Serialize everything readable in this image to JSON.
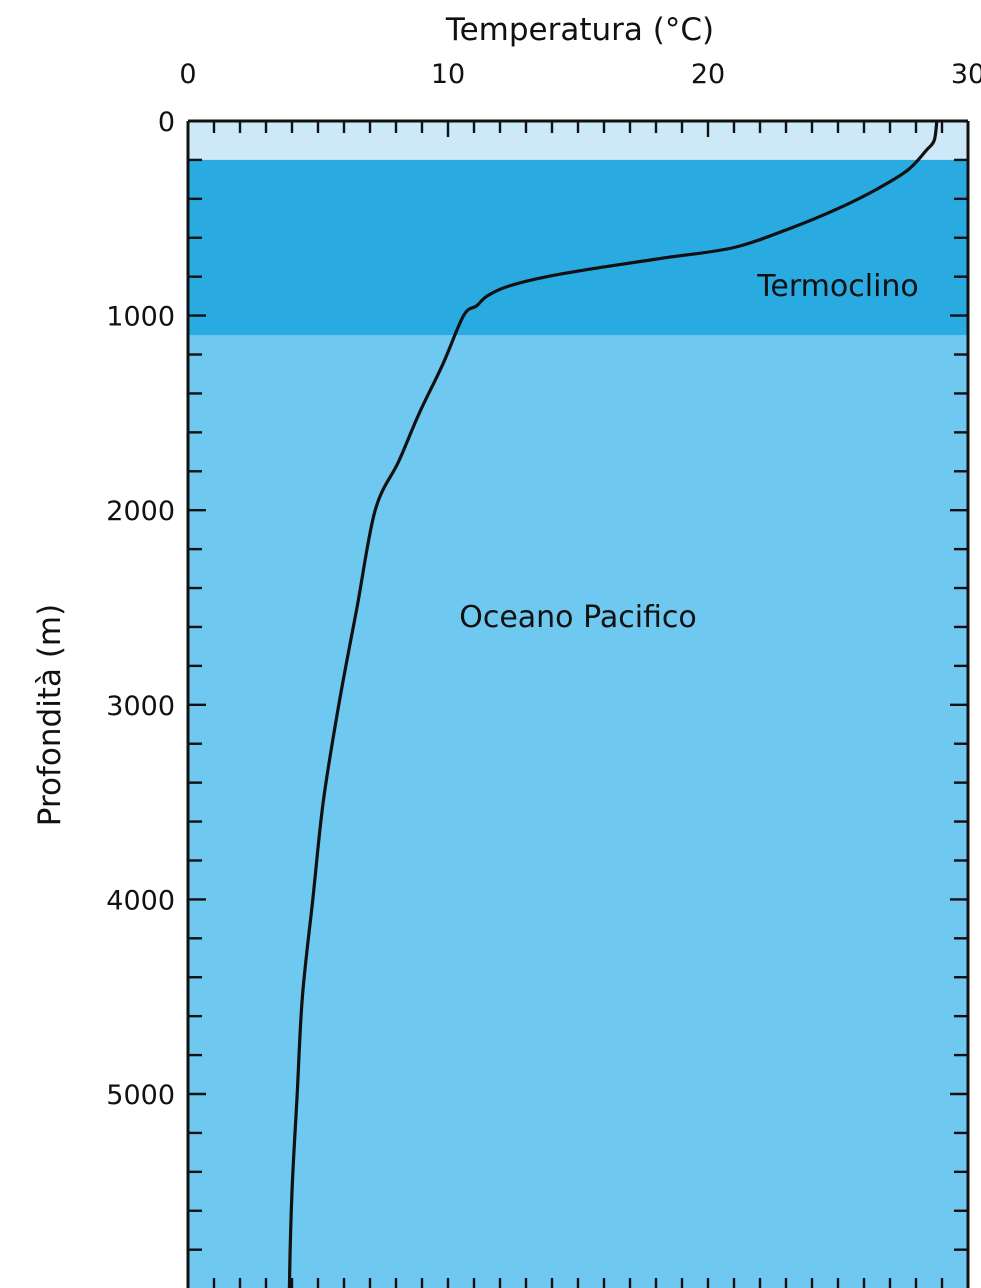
{
  "chart_data": {
    "type": "line",
    "title": "",
    "xlabel": "Temperatura (°C)",
    "ylabel": "Profondità (m)",
    "x_axis_position": "top",
    "y_axis_inverted": true,
    "xlim": [
      0,
      30
    ],
    "ylim": [
      0,
      6000
    ],
    "x_ticks": [
      0,
      10,
      20,
      30
    ],
    "x_tick_labels": [
      "0",
      "10",
      "20",
      "30"
    ],
    "y_ticks": [
      0,
      1000,
      2000,
      3000,
      4000,
      5000
    ],
    "y_tick_labels": [
      "0",
      "1000",
      "2000",
      "3000",
      "4000",
      "5000"
    ],
    "grid": false,
    "colors": {
      "surface_layer": "#cde9f8",
      "thermocline_band": "#29abe2",
      "deep_water": "#6ec8f0",
      "line": "#111111",
      "frame": "#111111"
    },
    "bands": [
      {
        "name": "surface",
        "depth_from": 0,
        "depth_to": 200
      },
      {
        "name": "thermocline",
        "depth_from": 200,
        "depth_to": 1100,
        "label": "Termoclino"
      }
    ],
    "annotations": [
      {
        "text": "Termoclino",
        "x": 25,
        "y": 900
      },
      {
        "text": "Oceano Pacifico",
        "x": 15,
        "y": 2600
      }
    ],
    "series": [
      {
        "x": [
          28.8,
          28.7,
          28.4,
          27.7,
          26.5,
          25,
          23.2,
          21,
          18.5,
          16,
          13.8,
          12.3,
          11.5,
          11.1,
          10.6,
          9.8,
          8.9,
          8.1,
          7.2,
          6.5,
          5.8,
          5.2,
          4.8,
          4.4,
          4.2,
          4.0,
          3.9,
          3.9
        ],
        "y": [
          0,
          100,
          150,
          250,
          350,
          450,
          550,
          650,
          700,
          750,
          800,
          850,
          900,
          950,
          1000,
          1250,
          1500,
          1750,
          2000,
          2500,
          3000,
          3500,
          4000,
          4500,
          5000,
          5500,
          6000,
          6300
        ]
      }
    ]
  }
}
